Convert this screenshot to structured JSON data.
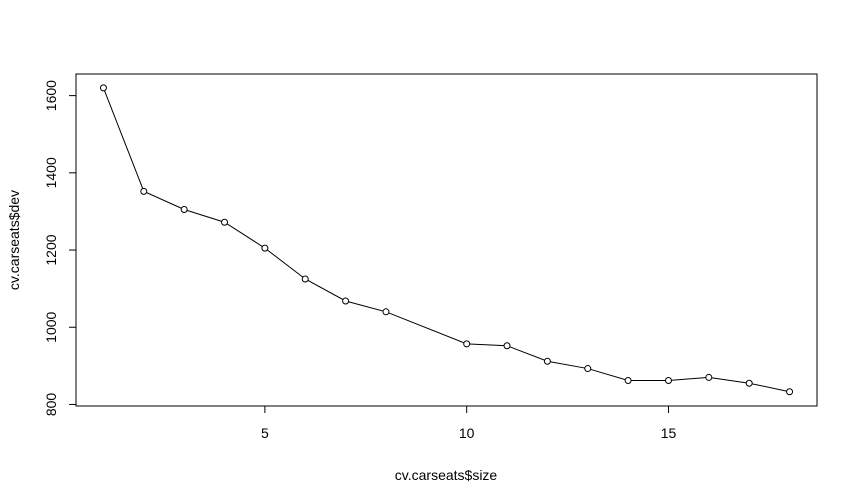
{
  "chart_data": {
    "type": "line",
    "title": "",
    "xlabel": "cv.carseats$size",
    "ylabel": "cv.carseats$dev",
    "x": [
      1,
      2,
      3,
      4,
      5,
      6,
      7,
      8,
      10,
      11,
      12,
      13,
      14,
      15,
      16,
      17,
      18
    ],
    "y": [
      1620,
      1352,
      1305,
      1272,
      1205,
      1125,
      1068,
      1040,
      957,
      952,
      912,
      893,
      862,
      862,
      870,
      855,
      833
    ],
    "xticks": [
      5,
      10,
      15
    ],
    "yticks": [
      800,
      1000,
      1200,
      1400,
      1600
    ],
    "xlim": [
      0.32,
      18.68
    ],
    "ylim": [
      796,
      1656
    ],
    "markers": "open-circle",
    "grid": false,
    "line_color": "#000000"
  }
}
